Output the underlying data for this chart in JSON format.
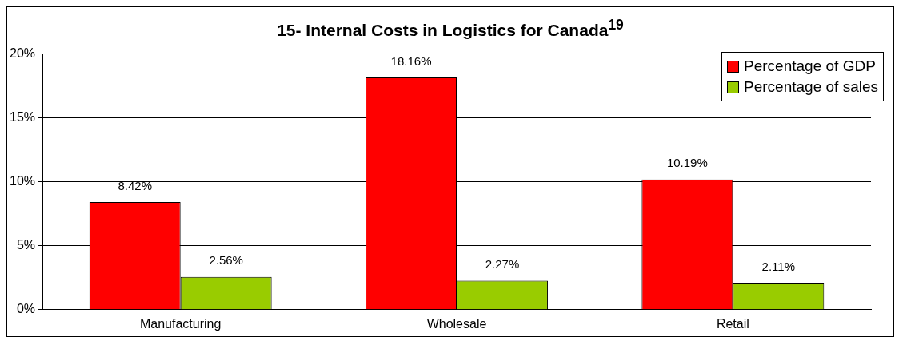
{
  "chart_data": {
    "type": "bar",
    "title": "15- Internal Costs in Logistics for Canada$^{19}$",
    "categories": [
      "Manufacturing",
      "Wholesale",
      "Retail"
    ],
    "series": [
      {
        "name": "Percentage of GDP",
        "color": "#ff0000",
        "values": [
          8.42,
          18.16,
          10.19
        ],
        "value_labels": [
          "8.42%",
          "18.16%",
          "10.19%"
        ]
      },
      {
        "name": "Percentage of sales",
        "color": "#99cc00",
        "values": [
          2.56,
          2.27,
          2.11
        ],
        "value_labels": [
          "2.56%",
          "2.27%",
          "2.11%"
        ]
      }
    ],
    "ylim": [
      0,
      20
    ],
    "yticks": [
      {
        "value": 0,
        "label": "0%"
      },
      {
        "value": 5,
        "label": "5%"
      },
      {
        "value": 10,
        "label": "10%"
      },
      {
        "value": 15,
        "label": "15%"
      },
      {
        "value": 20,
        "label": "20%"
      }
    ],
    "grid": "y",
    "legend": "top right"
  }
}
